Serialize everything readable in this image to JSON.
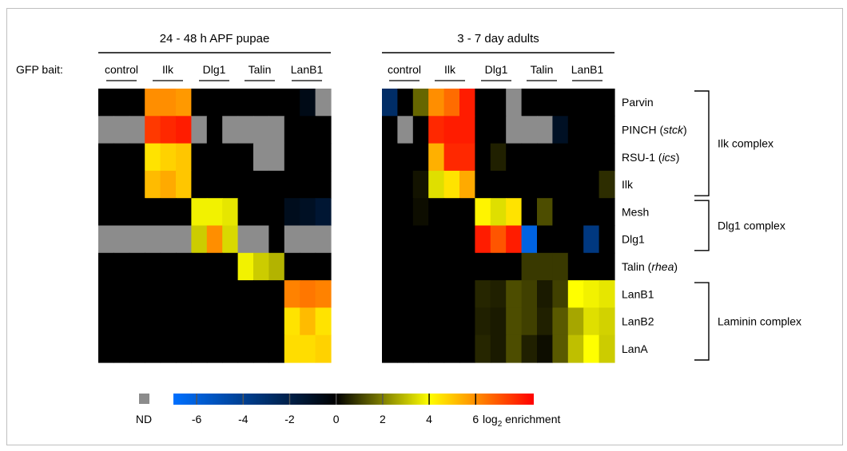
{
  "chart_data": {
    "type": "heatmap",
    "bait_label": "GFP bait:",
    "baits": [
      "control",
      "Ilk",
      "Dlg1",
      "Talin",
      "LanB1"
    ],
    "replicates_per_bait": 3,
    "rows": [
      {
        "name": "Parvin",
        "italic": ""
      },
      {
        "name": "PINCH (",
        "italic": "stck",
        "suffix": ")"
      },
      {
        "name": "RSU-1 (",
        "italic": "ics",
        "suffix": ")"
      },
      {
        "name": "Ilk",
        "italic": ""
      },
      {
        "name": "Mesh",
        "italic": ""
      },
      {
        "name": "Dlg1",
        "italic": ""
      },
      {
        "name": "Talin (",
        "italic": "rhea",
        "suffix": ")"
      },
      {
        "name": "LanB1",
        "italic": ""
      },
      {
        "name": "LanB2",
        "italic": ""
      },
      {
        "name": "LanA",
        "italic": ""
      }
    ],
    "complexes": [
      {
        "label": "Ilk complex",
        "row_start": 0,
        "row_end": 3
      },
      {
        "label": "Dlg1 complex",
        "row_start": 4,
        "row_end": 5
      },
      {
        "label": "Laminin complex",
        "row_start": 7,
        "row_end": 9
      }
    ],
    "panels": [
      {
        "title": "24 - 48 h APF pupae",
        "values": [
          [
            0,
            0,
            0,
            6,
            6,
            5.8,
            0,
            0,
            0,
            0,
            0,
            0,
            0,
            -0.6,
            "ND"
          ],
          [
            "ND",
            "ND",
            "ND",
            7.5,
            7.8,
            8,
            "ND",
            0,
            "ND",
            "ND",
            "ND",
            "ND",
            0,
            0,
            0
          ],
          [
            0,
            0,
            0,
            4.5,
            4.8,
            5,
            0,
            0,
            0,
            0,
            "ND",
            "ND",
            0,
            0,
            0
          ],
          [
            0,
            0,
            0,
            5.2,
            5.5,
            5,
            0,
            0,
            0,
            0,
            0,
            0,
            0,
            0,
            0
          ],
          [
            0,
            0,
            0,
            0,
            0,
            0,
            3.8,
            3.8,
            3.6,
            0,
            0,
            0,
            -0.8,
            -1,
            -1.4
          ],
          [
            "ND",
            "ND",
            "ND",
            "ND",
            "ND",
            "ND",
            3.2,
            6,
            3.4,
            "ND",
            "ND",
            0,
            "ND",
            "ND",
            "ND"
          ],
          [
            0,
            0,
            0,
            0,
            0,
            0,
            0,
            0,
            0,
            3.8,
            3.2,
            2.8,
            0,
            0,
            0
          ],
          [
            0,
            0,
            0,
            0,
            0,
            0,
            0,
            0,
            0,
            0,
            0,
            0,
            6.2,
            6.4,
            6.2
          ],
          [
            0,
            0,
            0,
            0,
            0,
            0,
            0,
            0,
            0,
            0,
            0,
            0,
            4.5,
            5.2,
            4.5
          ],
          [
            0,
            0,
            0,
            0,
            0,
            0,
            0,
            0,
            0,
            0,
            0,
            0,
            4.6,
            4.6,
            4.8
          ]
        ]
      },
      {
        "title": "3 - 7 day adults",
        "values": [
          [
            -2.8,
            0,
            1.6,
            6,
            6.6,
            8,
            0,
            0,
            "ND",
            0,
            0,
            0,
            0,
            0,
            0
          ],
          [
            0,
            "ND",
            0,
            7.8,
            8,
            8,
            0,
            0,
            "ND",
            "ND",
            "ND",
            -1,
            0,
            0,
            0
          ],
          [
            0,
            0,
            0,
            5.4,
            7.8,
            7.8,
            0,
            0.5,
            0,
            0,
            0,
            0,
            0,
            0,
            0
          ],
          [
            0,
            0,
            0.3,
            3.5,
            4.5,
            5.5,
            0,
            0,
            0,
            0,
            0,
            0,
            0,
            0,
            0.7
          ],
          [
            0,
            0,
            0.2,
            0,
            0,
            0,
            4.2,
            3.5,
            4.5,
            0,
            1.2,
            0,
            0,
            0,
            0
          ],
          [
            0,
            0,
            0,
            0,
            0,
            0,
            8,
            7,
            8,
            -6.2,
            0,
            0,
            0,
            -3.5,
            0
          ],
          [
            0,
            0,
            0,
            0,
            0,
            0,
            0,
            0,
            0,
            0.9,
            0.9,
            0.9,
            0,
            0,
            0
          ],
          [
            0,
            0,
            0,
            0,
            0,
            0,
            0.6,
            0.5,
            1.2,
            1,
            0.4,
            1,
            4,
            3.8,
            3.6
          ],
          [
            0,
            0,
            0,
            0,
            0,
            0,
            0.5,
            0.4,
            1.2,
            1,
            0.5,
            1.4,
            2.6,
            3.5,
            3.3
          ],
          [
            0,
            0,
            0,
            0,
            0,
            0,
            0.6,
            0.4,
            1.2,
            0.5,
            0.2,
            1.4,
            3,
            4,
            3.2
          ]
        ]
      }
    ],
    "colorbar": {
      "ticks": [
        -6,
        -4,
        -2,
        0,
        2,
        4,
        6
      ],
      "tick_labels": [
        "-6",
        "-4",
        "-2",
        "0",
        "2",
        "4",
        "6"
      ],
      "range": [
        -7,
        8.5
      ],
      "label_main": "log",
      "label_sub": "2",
      "label_rest": " enrichment",
      "nd_label": "ND",
      "nd_color": "#8c8c8c"
    },
    "colors": {
      "negative_end": "#0070ff",
      "zero": "#000000",
      "mid_positive": "#ffff00",
      "positive_end": "#ff0000"
    }
  }
}
